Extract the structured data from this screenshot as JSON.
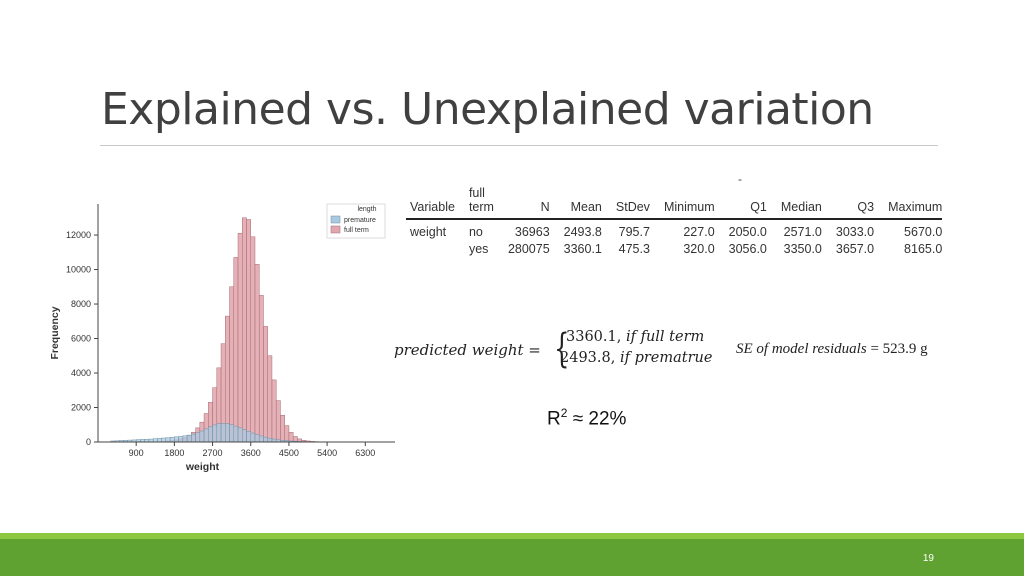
{
  "slide": {
    "title": "Explained vs. Unexplained variation",
    "page_number": "19",
    "dash": "-",
    "colors": {
      "footer": "#5fa232",
      "footer_accent": "#8dc63f",
      "premature": "#a9c9df",
      "full_term": "#e2a7ae"
    }
  },
  "table": {
    "headers": [
      "Variable",
      "full\nterm",
      "N",
      "Mean",
      "StDev",
      "Minimum",
      "Q1",
      "Median",
      "Q3",
      "Maximum"
    ],
    "rows": [
      [
        "weight",
        "no",
        "36963",
        "2493.8",
        "795.7",
        "227.0",
        "2050.0",
        "2571.0",
        "3033.0",
        "5670.0"
      ],
      [
        "",
        "yes",
        "280075",
        "3360.1",
        "475.3",
        "320.0",
        "3056.0",
        "3350.0",
        "3657.0",
        "8165.0"
      ]
    ]
  },
  "equation": {
    "lhs": "predicted weight =",
    "case1_value": "3360.1,",
    "case1_cond": "if full term",
    "case2_value": "2493.8,",
    "case2_cond": "if prematrue",
    "se_label": "SE of model residuals",
    "se_value": "= 523.9 g"
  },
  "r2": {
    "label": "R",
    "sup": "2",
    "value": "≈ 22%"
  },
  "chart_data": {
    "type": "bar",
    "xlabel": "weight",
    "ylabel": "Frequency",
    "xticks": [
      900,
      1800,
      2700,
      3600,
      4500,
      5400,
      6300
    ],
    "yticks": [
      0,
      2000,
      4000,
      6000,
      8000,
      10000,
      12000
    ],
    "xlim": [
      0,
      7000
    ],
    "ylim": [
      0,
      13800
    ],
    "legend_title": "length",
    "legend_placement": "top-right",
    "bin_width": 100,
    "series": [
      {
        "name": "premature",
        "x": [
          300,
          400,
          500,
          600,
          700,
          800,
          900,
          1000,
          1100,
          1200,
          1300,
          1400,
          1500,
          1600,
          1700,
          1800,
          1900,
          2000,
          2100,
          2200,
          2300,
          2400,
          2500,
          2600,
          2700,
          2800,
          2900,
          3000,
          3100,
          3200,
          3300,
          3400,
          3500,
          3600,
          3700,
          3800,
          3900,
          4000,
          4100,
          4200,
          4300,
          4400,
          4500,
          4600,
          4700,
          4800
        ],
        "values": [
          60,
          70,
          90,
          100,
          110,
          120,
          140,
          150,
          160,
          170,
          190,
          210,
          230,
          250,
          270,
          300,
          320,
          360,
          400,
          460,
          540,
          640,
          760,
          880,
          990,
          1060,
          1080,
          1060,
          1000,
          920,
          820,
          720,
          620,
          520,
          430,
          350,
          280,
          220,
          170,
          130,
          100,
          80,
          60,
          45,
          35,
          25
        ]
      },
      {
        "name": "full term",
        "x": [
          1500,
          1600,
          1700,
          1800,
          1900,
          2000,
          2100,
          2200,
          2300,
          2400,
          2500,
          2600,
          2700,
          2800,
          2900,
          3000,
          3100,
          3200,
          3300,
          3400,
          3500,
          3600,
          3700,
          3800,
          3900,
          4000,
          4100,
          4200,
          4300,
          4400,
          4500,
          4600,
          4700,
          4800,
          4900,
          5000,
          5100,
          5200
        ],
        "values": [
          30,
          50,
          80,
          120,
          180,
          260,
          380,
          560,
          820,
          1150,
          1650,
          2300,
          3150,
          4300,
          5700,
          7300,
          9000,
          10700,
          12100,
          13000,
          12900,
          11900,
          10300,
          8500,
          6700,
          5000,
          3600,
          2400,
          1550,
          950,
          560,
          320,
          180,
          100,
          60,
          35,
          20,
          10
        ]
      }
    ]
  }
}
